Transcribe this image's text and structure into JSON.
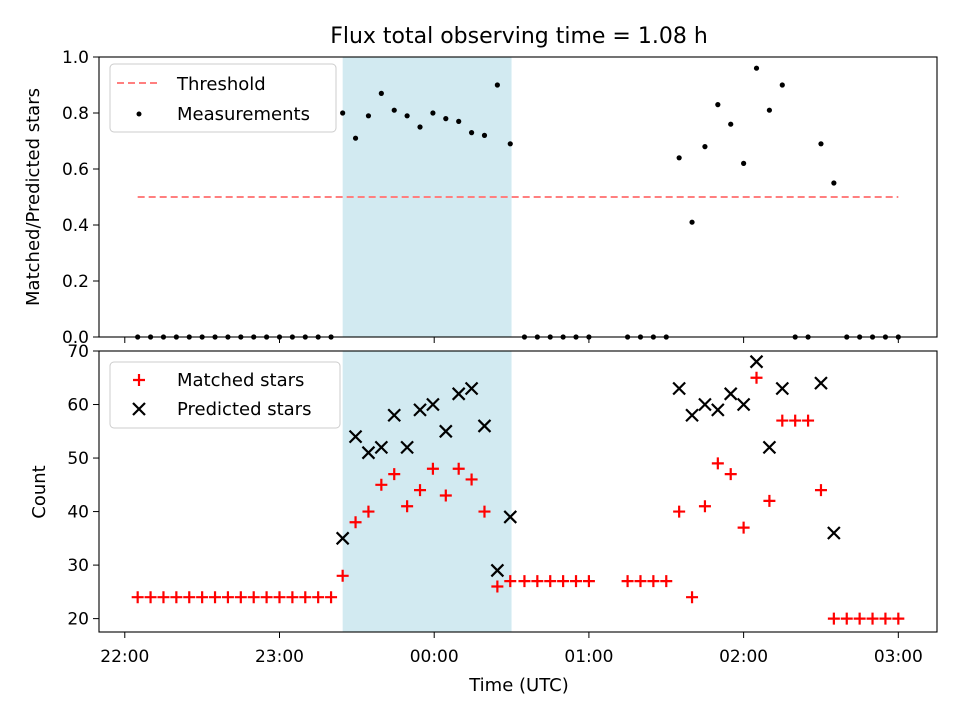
{
  "chart_data": {
    "title": "Flux total observing time = 1.08 h",
    "xlabel": "Time (UTC)",
    "x_ticks": [
      {
        "label": "22:00",
        "t": -120
      },
      {
        "label": "23:00",
        "t": -60
      },
      {
        "label": "00:00",
        "t": 0
      },
      {
        "label": "01:00",
        "t": 60
      },
      {
        "label": "02:00",
        "t": 120
      },
      {
        "label": "03:00",
        "t": 180
      }
    ],
    "xlim_minutes": [
      -130,
      195
    ],
    "shaded_span_minutes": [
      -35.5,
      30
    ],
    "shade_color": "#add8e6",
    "panels": [
      {
        "type": "scatter",
        "ylabel": "Matched/Predicted stars",
        "ylim": [
          0,
          1
        ],
        "yticks": [
          0.0,
          0.2,
          0.4,
          0.6,
          0.8,
          1.0
        ],
        "ytick_labels": [
          "0.0",
          "0.2",
          "0.4",
          "0.6",
          "0.8",
          "1.0"
        ],
        "legend": [
          "Threshold",
          "Measurements"
        ],
        "threshold": {
          "name": "Threshold",
          "value": 0.5,
          "x_range": [
            -115,
            180
          ],
          "color": "#ff7f7f",
          "style": "dashed"
        },
        "series": [
          {
            "name": "Measurements",
            "marker": "dot",
            "color": "#000000",
            "x": [
              -115,
              -110,
              -105,
              -100,
              -95,
              -90,
              -85,
              -80,
              -75,
              -70,
              -65,
              -60,
              -55,
              -50,
              -45,
              -40,
              -35.5,
              -30.5,
              -25.5,
              -20.5,
              -15.5,
              -10.5,
              -5.5,
              -0.5,
              4.5,
              9.5,
              14.5,
              19.5,
              24.5,
              29.5,
              35,
              40,
              45,
              50,
              55,
              60,
              75,
              80,
              85,
              90,
              95,
              100,
              105,
              110,
              115,
              120,
              125,
              130,
              135,
              140,
              145,
              150,
              155,
              160,
              165,
              170,
              175,
              180
            ],
            "y": [
              0,
              0,
              0,
              0,
              0,
              0,
              0,
              0,
              0,
              0,
              0,
              0,
              0,
              0,
              0,
              0,
              0.8,
              0.71,
              0.79,
              0.87,
              0.81,
              0.79,
              0.75,
              0.8,
              0.78,
              0.77,
              0.73,
              0.72,
              0.9,
              0.69,
              0,
              0,
              0,
              0,
              0,
              0,
              0,
              0,
              0,
              0,
              0.64,
              0.41,
              0.68,
              0.83,
              0.76,
              0.62,
              0.96,
              0.81,
              0.9,
              0,
              0,
              0.69,
              0.55,
              0,
              0,
              0,
              0,
              0
            ]
          }
        ]
      },
      {
        "type": "scatter",
        "ylabel": "Count",
        "ylim": [
          17.5,
          70
        ],
        "yticks": [
          20,
          30,
          40,
          50,
          60,
          70
        ],
        "ytick_labels": [
          "20",
          "30",
          "40",
          "50",
          "60",
          "70"
        ],
        "legend": [
          "Matched stars",
          "Predicted stars"
        ],
        "series": [
          {
            "name": "Matched stars",
            "marker": "plus",
            "color": "#ff0000",
            "x": [
              -115,
              -110,
              -105,
              -100,
              -95,
              -90,
              -85,
              -80,
              -75,
              -70,
              -65,
              -60,
              -55,
              -50,
              -45,
              -40,
              -35.5,
              -30.5,
              -25.5,
              -20.5,
              -15.5,
              -10.5,
              -5.5,
              -0.5,
              4.5,
              9.5,
              14.5,
              19.5,
              24.5,
              29.5,
              35,
              40,
              45,
              50,
              55,
              60,
              75,
              80,
              85,
              90,
              95,
              100,
              105,
              110,
              115,
              120,
              125,
              130,
              135,
              140,
              145,
              150,
              155,
              160,
              165,
              170,
              175,
              180
            ],
            "y": [
              24,
              24,
              24,
              24,
              24,
              24,
              24,
              24,
              24,
              24,
              24,
              24,
              24,
              24,
              24,
              24,
              28,
              38,
              40,
              45,
              47,
              41,
              44,
              48,
              43,
              48,
              46,
              40,
              26,
              27,
              27,
              27,
              27,
              27,
              27,
              27,
              27,
              27,
              27,
              27,
              40,
              24,
              41,
              49,
              47,
              37,
              65,
              42,
              57,
              57,
              57,
              44,
              20,
              20,
              20,
              20,
              20,
              20
            ]
          },
          {
            "name": "Predicted stars",
            "marker": "x",
            "color": "#000000",
            "x": [
              -35.5,
              -30.5,
              -25.5,
              -20.5,
              -15.5,
              -10.5,
              -5.5,
              -0.5,
              4.5,
              9.5,
              14.5,
              19.5,
              24.5,
              29.5,
              95,
              100,
              105,
              110,
              115,
              120,
              125,
              130,
              135,
              150,
              155
            ],
            "y": [
              35,
              54,
              51,
              52,
              58,
              52,
              59,
              60,
              55,
              62,
              63,
              56,
              29,
              39,
              63,
              58,
              60,
              59,
              62,
              60,
              68,
              52,
              63,
              64,
              36
            ]
          }
        ]
      }
    ]
  }
}
